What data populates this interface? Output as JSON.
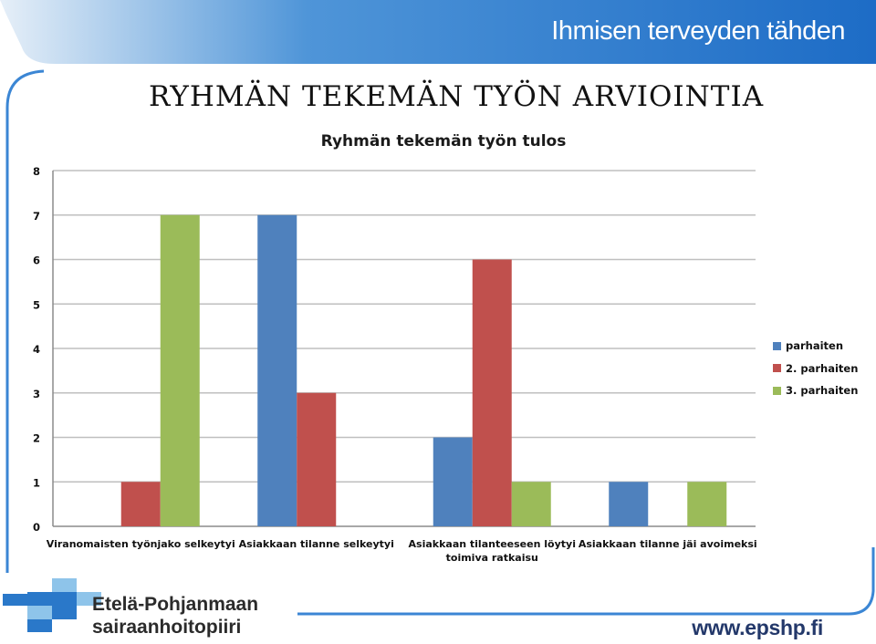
{
  "header": {
    "tagline": "Ihmisen terveyden tähden"
  },
  "slide": {
    "title": "RYHMÄN TEKEMÄN TYÖN ARVIOINTIA"
  },
  "footer": {
    "org_line1": "Etelä-Pohjanmaan",
    "org_line2": "sairaanhoitopiiri",
    "url": "www.epshp.fi"
  },
  "colors": {
    "brand_blue": "#2a78c9",
    "brand_light_blue": "#8ec4ea",
    "series_1": "#4f81bd",
    "series_2": "#c0504d",
    "series_3": "#9bbb59",
    "grid": "#bfbfbf"
  },
  "chart_data": {
    "type": "bar",
    "title": "Ryhmän tekemän työn tulos",
    "categories": [
      [
        "Viranomaisten työnjako selkeytyi"
      ],
      [
        "Asiakkaan tilanne selkeytyi"
      ],
      [
        "Asiakkaan tilanteeseen löytyi",
        "toimiva ratkaisu"
      ],
      [
        "Asiakkaan tilanne jäi avoimeksi"
      ]
    ],
    "series": [
      {
        "name": "parhaiten",
        "values": [
          0,
          7,
          2,
          1
        ]
      },
      {
        "name": "2. parhaiten",
        "values": [
          1,
          3,
          6,
          0
        ]
      },
      {
        "name": "3. parhaiten",
        "values": [
          7,
          0,
          1,
          1
        ]
      }
    ],
    "ylim": [
      0,
      8
    ],
    "yticks": [
      "0",
      "1",
      "2",
      "3",
      "4",
      "5",
      "6",
      "7",
      "8"
    ],
    "grid": true,
    "legend_position": "right"
  }
}
